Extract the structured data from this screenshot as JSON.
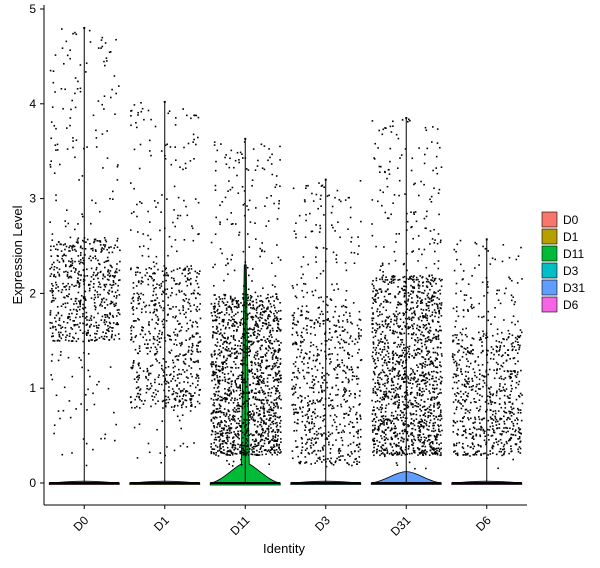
{
  "chart_data": {
    "type": "violin",
    "xlabel": "Identity",
    "ylabel": "Expression Level",
    "ylim": [
      -0.25,
      5.05
    ],
    "yticks": [
      0,
      1,
      2,
      3,
      4,
      5
    ],
    "grid": false,
    "legend_position": "right",
    "categories": [
      "D0",
      "D1",
      "D11",
      "D3",
      "D31",
      "D6"
    ],
    "series": [
      {
        "name": "D0",
        "color": "#F8766D",
        "max": 4.8,
        "zero_density": "low",
        "dense_band": [
          1.5,
          2.6
        ],
        "violin_height": 0.02
      },
      {
        "name": "D1",
        "color": "#B79F00",
        "max": 4.02,
        "zero_density": "low",
        "dense_band": [
          0.8,
          2.3
        ],
        "violin_height": 0.02
      },
      {
        "name": "D11",
        "color": "#00BA38",
        "max": 3.63,
        "zero_density": "high",
        "dense_band": [
          0.3,
          2.0
        ],
        "violin_height": 0.2,
        "violin_spike": 2.3
      },
      {
        "name": "D3",
        "color": "#00BFC4",
        "max": 3.2,
        "zero_density": "low",
        "dense_band": [
          0.2,
          1.9
        ],
        "violin_height": 0.02
      },
      {
        "name": "D31",
        "color": "#619CFF",
        "max": 3.85,
        "zero_density": "high",
        "dense_band": [
          0.3,
          2.2
        ],
        "violin_height": 0.12
      },
      {
        "name": "D6",
        "color": "#F564E3",
        "max": 2.57,
        "zero_density": "low",
        "dense_band": [
          0.3,
          1.6
        ],
        "violin_height": 0.02
      }
    ]
  }
}
